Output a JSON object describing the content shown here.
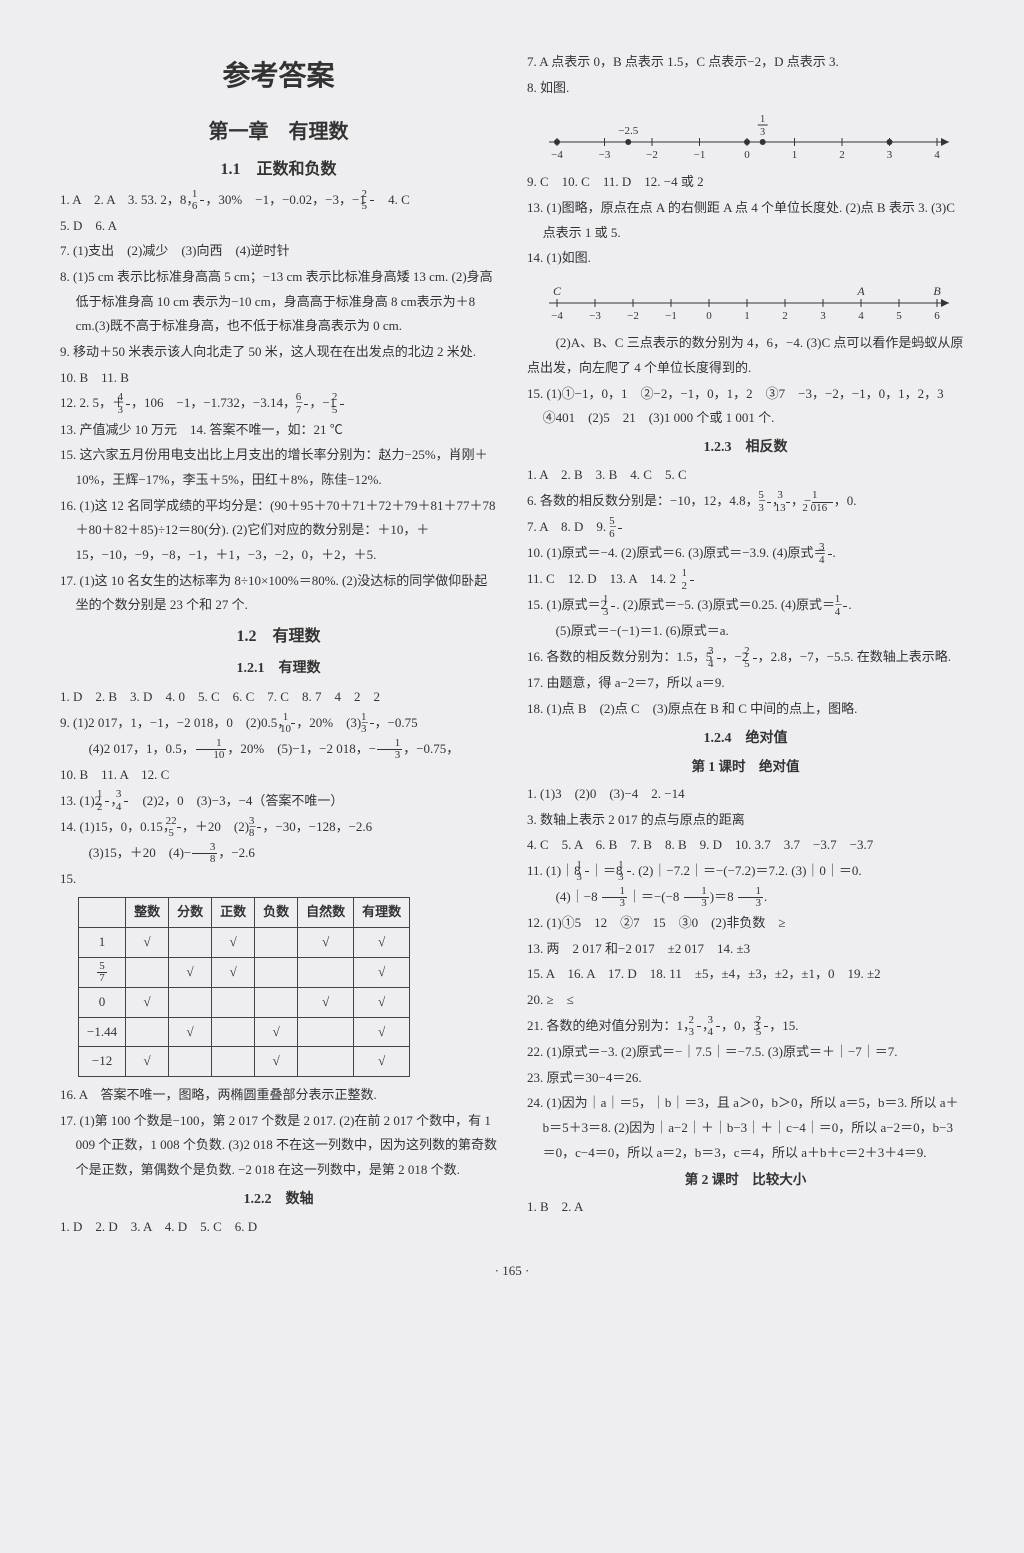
{
  "page_number": "· 165 ·",
  "main_title": "参考答案",
  "chapter": "第一章　有理数",
  "sec_1_1": "1.1　正数和负数",
  "sec_1_2": "1.2　有理数",
  "sec_1_2_1": "1.2.1　有理数",
  "sec_1_2_2": "1.2.2　数轴",
  "sec_1_2_3": "1.2.3　相反数",
  "sec_1_2_4": "1.2.4　绝对值",
  "lesson1": "第 1 课时　绝对值",
  "lesson2": "第 2 课时　比较大小",
  "l": {
    "p1a": "1. A　2. A　3. 53. 2，8，",
    "p1b": "，30%　−1，−0.02，−3，−1 ",
    "p1c": "　4. C",
    "p2": "5. D　6. A",
    "p3": "7. (1)支出　(2)减少　(3)向西　(4)逆时针",
    "p4": "8. (1)5 cm 表示比标准身高高 5 cm；−13 cm 表示比标准身高矮 13 cm. (2)身高低于标准身高 10 cm 表示为−10 cm，身高高于标准身高 8 cm表示为＋8 cm.(3)既不高于标准身高，也不低于标准身高表示为 0 cm.",
    "p5": "9. 移动＋50 米表示该人向北走了 50 米，这人现在在出发点的北边 2 米处.",
    "p6": "10. B　11. B",
    "p7a": "12. 2. 5，＋",
    "p7b": "，106　−1，−1.732，−3.14，−",
    "p7c": "，−1 ",
    "p8": "13. 产值减少 10 万元　14. 答案不唯一，如：21 ℃",
    "p9": "15. 这六家五月份用电支出比上月支出的增长率分别为：赵力−25%，肖刚＋10%，王辉−17%，李玉＋5%，田红＋8%，陈佳−12%.",
    "p10": "16. (1)这 12 名同学成绩的平均分是：(90＋95＋70＋71＋72＋79＋81＋77＋78＋80＋82＋85)÷12＝80(分). (2)它们对应的数分别是：＋10，＋15，−10，−9，−8，−1，＋1，−3，−2，0，＋2，＋5.",
    "p11": "17. (1)这 10 名女生的达标率为 8÷10×100%＝80%. (2)没达标的同学做仰卧起坐的个数分别是 23 个和 27 个.",
    "p12": "1. D　2. B　3. D　4. 0　5. C　6. C　7. C　8. 7　4　2　2",
    "p13a": "9. (1)2 017，1，−1，−2 018，0　(2)0.5，",
    "p13b": "，20%　(3)−",
    "p13c": "，−0.75",
    "p13d": "　(4)2 017，1，0.5，",
    "p13e": "，20%　(5)−1，−2 018，−",
    "p13f": "，−0.75，",
    "p14": "10. B　11. A　12. C",
    "p15a": "13. (1)2 ",
    "p15b": "，",
    "p15c": "　(2)2，0　(3)−3，−4（答案不唯一）",
    "p16a": "14. (1)15，0，0.15，",
    "p16b": "，＋20　(2)−",
    "p16c": "，−30，−128，−2.6",
    "p16d": "　(3)15，＋20　(4)−",
    "p16e": "，−2.6",
    "p17": "15.",
    "p18": "16. A　答案不唯一，图略，两椭圆重叠部分表示正整数.",
    "p19": "17. (1)第 100 个数是−100，第 2 017 个数是 2 017. (2)在前 2 017 个数中，有 1 009 个正数，1 008 个负数. (3)2 018 不在这一列数中，因为这列数的第奇数个是正数，第偶数个是负数. −2 018 在这一列数中，是第 2 018 个数.",
    "p20": "1. D　2. D　3. A　4. D　5. C　6. D"
  },
  "r": {
    "p1": "7. A 点表示 0，B 点表示 1.5，C 点表示−2，D 点表示 3.",
    "p2": "8. 如图.",
    "p3": "9. C　10. C　11. D　12. −4 或 2",
    "p4": "13. (1)图略，原点在点 A 的右侧距 A 点 4 个单位长度处. (2)点 B 表示 3. (3)C 点表示 1 或 5.",
    "p5": "14. (1)如图.",
    "p6": "　(2)A、B、C 三点表示的数分别为 4，6，−4. (3)C 点可以看作是蚂蚁从原点出发，向左爬了 4 个单位长度得到的.",
    "p7": "15. (1)①−1，0，1　②−2，−1，0，1，2　③7　−3，−2，−1，0，1，2，3　④401　(2)5　21　(3)1 000 个或 1 001 个.",
    "p8": "1. A　2. B　3. B　4. C　5. C",
    "p9a": "6. 各数的相反数分别是：−10，12，4.8，−",
    "p9b": "，",
    "p9c": "，−",
    "p9d": "，0.",
    "p10a": "7. A　8. D　9. −",
    "p11a": "10. (1)原式＝−4. (2)原式＝6. (3)原式＝−3.9. (4)原式＝",
    "p11b": ".",
    "p12a": "11. C　12. D　13. A　14. 2　",
    "p13a": "15. (1)原式＝2 ",
    "p13b": ". (2)原式＝−5. (3)原式＝0.25. (4)原式＝−",
    "p13c": ".",
    "p13d": "　(5)原式＝−(−1)＝1. (6)原式＝a.",
    "p14a": "16. 各数的相反数分别为：1.5，5 ",
    "p14b": "，−2 ",
    "p14c": "，2.8，−7，−5.5. 在数轴上表示略.",
    "p15": "17. 由题意，得 a−2＝7，所以 a＝9.",
    "p16": "18. (1)点 B　(2)点 C　(3)原点在 B 和 C 中间的点上，图略.",
    "p17": "1. (1)3　(2)0　(3)−4　2. −14",
    "p18": "3. 数轴上表示 2 017 的点与原点的距离",
    "p19": "4. C　5. A　6. B　7. B　8. B　9. D　10. 3.7　3.7　−3.7　−3.7",
    "p20a": "11. (1)｜8 ",
    "p20b": "｜＝8 ",
    "p20c": ". (2)｜−7.2｜＝−(−7.2)＝7.2. (3)｜0｜＝0.",
    "p20d": "　(4)｜−8 ",
    "p20e": "｜＝−(−8 ",
    "p20f": ")＝8 ",
    "p20g": ".",
    "p21": "12. (1)①5　12　②7　15　③0　(2)非负数　≥",
    "p22": "13. 两　2 017 和−2 017　±2 017　14. ±3",
    "p23": "15. A　16. A　17. D　18. 11　±5，±4，±3，±2，±1，0　19. ±2",
    "p24": "20. ≥　≤",
    "p25a": "21. 各数的绝对值分别为：1，",
    "p25b": "，",
    "p25c": "，0，3 ",
    "p25d": "，15.",
    "p26": "22. (1)原式＝−3. (2)原式＝−｜7.5｜＝−7.5. (3)原式＝＋｜−7｜＝7.",
    "p27": "23. 原式＝30−4＝26.",
    "p28": "24. (1)因为｜a｜＝5，｜b｜＝3，且 a＞0，b＞0，所以 a＝5，b＝3. 所以 a＋b＝5＋3＝8. (2)因为｜a−2｜＋｜b−3｜＋｜c−4｜＝0，所以 a−2＝0，b−3＝0，c−4＝0，所以 a＝2，b＝3，c＝4，所以 a＋b＋c＝2＋3＋4＝9.",
    "p29": "1. B　2. A"
  },
  "table15": {
    "headers": [
      "",
      "整数",
      "分数",
      "正数",
      "负数",
      "自然数",
      "有理数"
    ],
    "rows_labels": [
      "1",
      "5/7",
      "0",
      "−1.44",
      "−12"
    ],
    "marks": [
      [
        true,
        false,
        true,
        false,
        true,
        true
      ],
      [
        false,
        true,
        true,
        false,
        false,
        true
      ],
      [
        true,
        false,
        false,
        false,
        true,
        true
      ],
      [
        false,
        true,
        false,
        true,
        false,
        true
      ],
      [
        true,
        false,
        false,
        true,
        false,
        true
      ]
    ]
  },
  "nl1": {
    "ticks": [
      "−4",
      "−3",
      "−2",
      "−1",
      "0",
      "1",
      "2",
      "3",
      "4"
    ],
    "dots": [
      {
        "x": -2.5,
        "label": "−2.5",
        "above": true
      },
      {
        "x": 0.33,
        "label": "1/3",
        "above": true,
        "frac": true
      },
      {
        "x": -4
      },
      {
        "x": 0
      },
      {
        "x": 3
      }
    ]
  },
  "nl2": {
    "ticks": [
      "−4",
      "−3",
      "−2",
      "−1",
      "0",
      "1",
      "2",
      "3",
      "4",
      "5",
      "6"
    ],
    "letters": [
      {
        "x": -4,
        "label": "C"
      },
      {
        "x": 4,
        "label": "A"
      },
      {
        "x": 6,
        "label": "B"
      }
    ]
  },
  "colors": {
    "text": "#333333",
    "line": "#333333",
    "bg": "#eeeef0"
  }
}
